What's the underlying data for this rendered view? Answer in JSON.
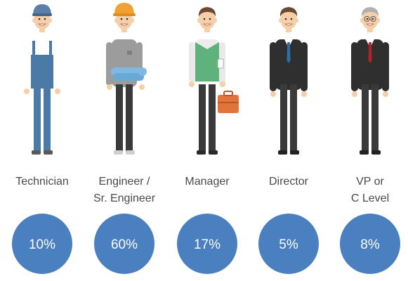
{
  "chart_data": {
    "type": "infographic",
    "categories": [
      {
        "label_lines": [
          "Technician"
        ],
        "icon": "technician-figure-icon"
      },
      {
        "label_lines": [
          "Engineer /",
          "Sr. Engineer"
        ],
        "icon": "engineer-figure-icon"
      },
      {
        "label_lines": [
          "Manager"
        ],
        "icon": "manager-figure-icon"
      },
      {
        "label_lines": [
          "Director"
        ],
        "icon": "director-figure-icon"
      },
      {
        "label_lines": [
          "VP or",
          "C Level"
        ],
        "icon": "executive-figure-icon"
      }
    ],
    "values": [
      10,
      60,
      17,
      5,
      8
    ],
    "value_labels": [
      "10%",
      "60%",
      "17%",
      "5%",
      "8%"
    ],
    "unit": "%",
    "colors": {
      "circle": "#4a7fc0",
      "value_text": "#ffffff",
      "category_text": "#4a4a4a",
      "skin": "#f6cfa9",
      "hair": "#6b4a33",
      "hair_gray": "#b0b0b0",
      "overalls": "#4a7aa5",
      "hardhat": "#f0a133",
      "cap": "#5b7fa6",
      "suit": "#2f2f2f",
      "trousers": "#3a3a3a",
      "vest": "#5fb27b",
      "briefcase": "#e0743a",
      "blueprint": "#7fb8e0",
      "tie_blue": "#2f6fa8",
      "tie_red": "#b5202a",
      "shirt_gray": "#9c9c9c",
      "white": "#ffffff"
    }
  }
}
